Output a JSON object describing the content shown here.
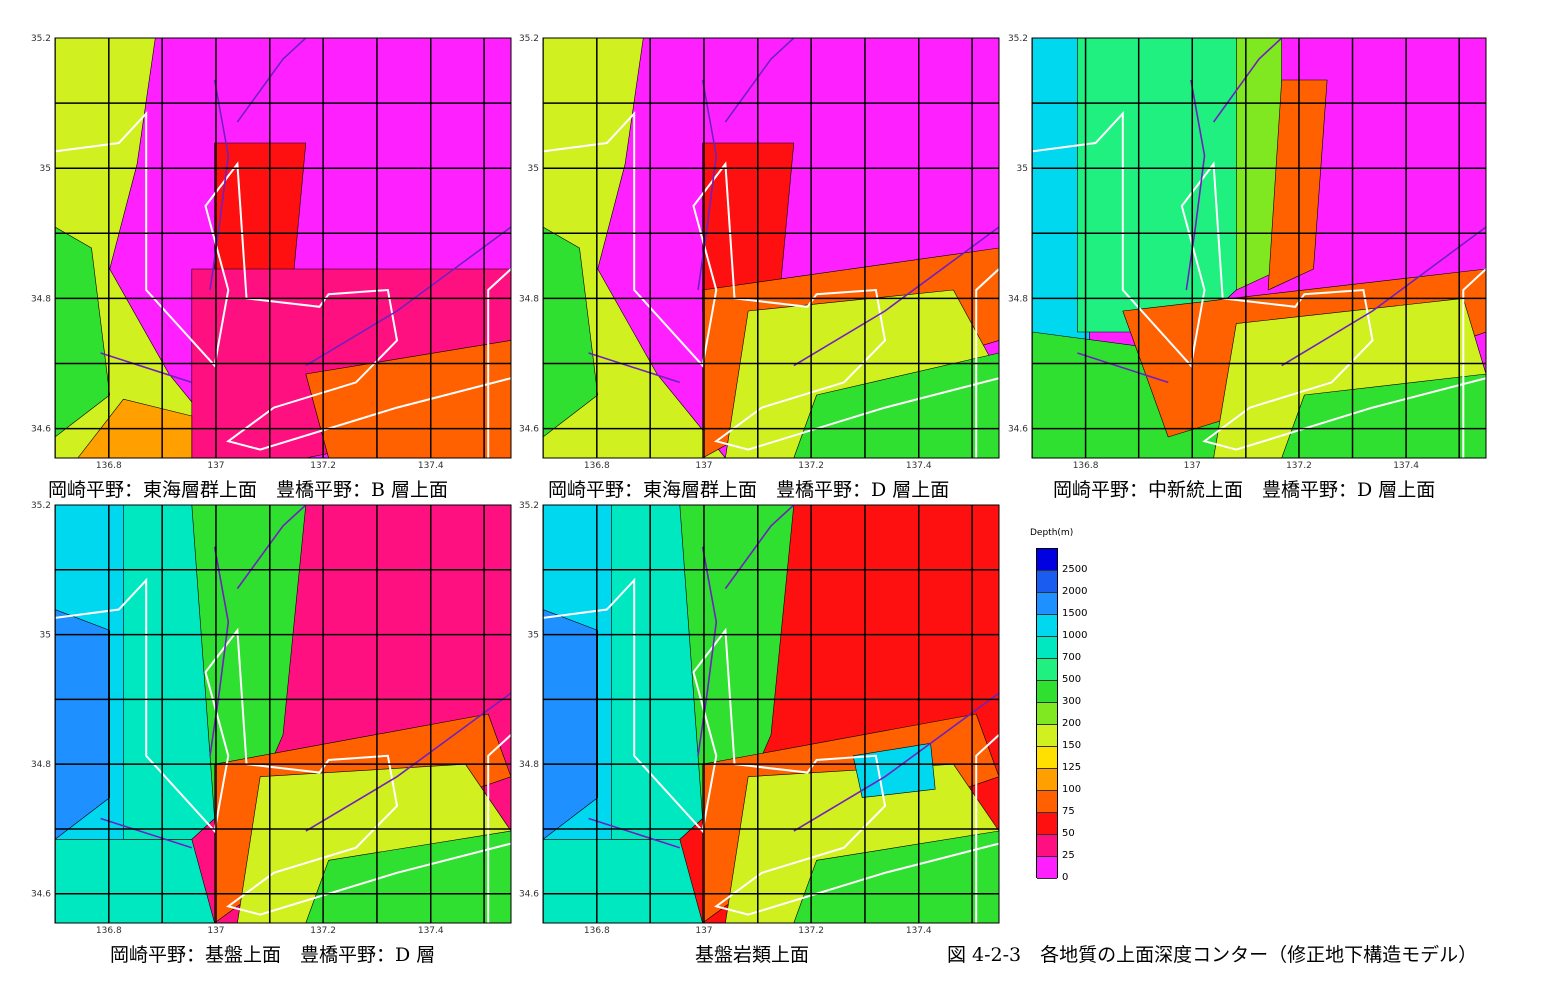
{
  "figure_caption": "図 4-2-3　各地質の上面深度コンター（修正地下構造モデル）",
  "axes": {
    "x_ticks": [
      "136.8",
      "137",
      "137.2",
      "137.4"
    ],
    "y_ticks": [
      "35.2",
      "35",
      "34.8",
      "34.6"
    ]
  },
  "panels": [
    {
      "caption": "岡崎平野：東海層群上面　豊橋平野：B 層上面",
      "scheme": "a"
    },
    {
      "caption": "岡崎平野：東海層群上面　豊橋平野：D 層上面",
      "scheme": "b"
    },
    {
      "caption": "岡崎平野：中新統上面　豊橋平野：D 層上面",
      "scheme": "c"
    },
    {
      "caption": "岡崎平野：基盤上面　豊橋平野：D 層",
      "scheme": "d"
    },
    {
      "caption": "基盤岩類上面",
      "scheme": "e"
    }
  ],
  "legend": {
    "title": "Depth(m)",
    "levels": [
      "2500",
      "2000",
      "1500",
      "1000",
      "700",
      "500",
      "300",
      "200",
      "150",
      "125",
      "100",
      "75",
      "50",
      "25",
      "0"
    ],
    "colors": [
      "#0000e0",
      "#1a5cf0",
      "#1e90ff",
      "#00d8f0",
      "#00e8c0",
      "#20f080",
      "#30e030",
      "#80e820",
      "#d0f020",
      "#ffe000",
      "#ffa000",
      "#ff6000",
      "#ff1010",
      "#ff1080",
      "#ff20ff"
    ]
  }
}
